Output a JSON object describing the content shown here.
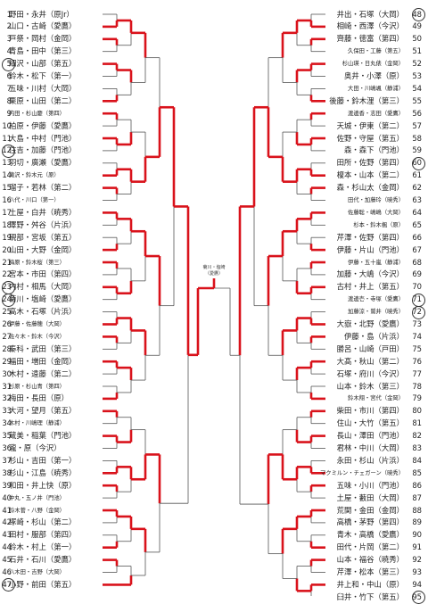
{
  "final": {
    "lines": [
      "菊川・塩崎",
      "（愛鷹）"
    ]
  },
  "left": [
    {
      "n": "1",
      "name": "野田・永井（原Jr）"
    },
    {
      "n": "2",
      "name": "山口・古崎（愛鷹）"
    },
    {
      "n": "3",
      "name": "戸祭・岡村（金岡）"
    },
    {
      "n": "4",
      "name": "青島・田中（第三）"
    },
    {
      "n": "5",
      "name": "細沢・山部（第五）"
    },
    {
      "n": "6",
      "name": "鈴木・松下（第一）"
    },
    {
      "n": "7",
      "name": "五味・川村（大岡）"
    },
    {
      "n": "8",
      "name": "栗原・山田（第二）"
    },
    {
      "n": "9",
      "name": "内田・杉山慶（第四）"
    },
    {
      "n": "10",
      "name": "柏原・伊藤（愛鷹）"
    },
    {
      "n": "11",
      "name": "大島・中村（門池）"
    },
    {
      "n": "12",
      "name": "住吉・加藤（門池）"
    },
    {
      "n": "13",
      "name": "羽切・廣瀬（愛鷹）"
    },
    {
      "n": "14",
      "name": "滝沢・鈴木元（原）"
    },
    {
      "n": "15",
      "name": "瑠子・若林（第二）"
    },
    {
      "n": "16",
      "name": "八代・川口（第一）"
    },
    {
      "n": "17",
      "name": "土屋・白井（暁秀）"
    },
    {
      "n": "18",
      "name": "澤野・舛谷（片浜）"
    },
    {
      "n": "19",
      "name": "硯部・宮坂（第五）"
    },
    {
      "n": "20",
      "name": "山田・大野（金岡）"
    },
    {
      "n": "21",
      "name": "梅原・鈴木桜（第三）"
    },
    {
      "n": "22",
      "name": "宮本・市田（第四）"
    },
    {
      "n": "23",
      "name": "内村・相馬（大岡）"
    },
    {
      "n": "24",
      "name": "菊川・塩崎（愛鷹）"
    },
    {
      "n": "25",
      "name": "高木・石塚（片浜）"
    },
    {
      "n": "26",
      "name": "伊藤・佐藤穂（大岡）"
    },
    {
      "n": "27",
      "name": "佐々木・鈴木（今沢）"
    },
    {
      "n": "28",
      "name": "秦科・武田（第三）"
    },
    {
      "n": "29",
      "name": "福田・増田（金岡）"
    },
    {
      "n": "30",
      "name": "木村・遠藤（第二）"
    },
    {
      "n": "31",
      "name": "杉原・杉山青（第四）"
    },
    {
      "n": "32",
      "name": "梅田・長田（原）"
    },
    {
      "n": "33",
      "name": "大河・望月（第五）"
    },
    {
      "n": "34",
      "name": "木村・川嶋理（静浦）"
    },
    {
      "n": "35",
      "name": "蔵美・稲葉（門池）"
    },
    {
      "n": "36",
      "name": "瀧・原（今沢）"
    },
    {
      "n": "37",
      "name": "杉山・吉田（第一）"
    },
    {
      "n": "38",
      "name": "杉山・江島（暁秀）"
    },
    {
      "n": "39",
      "name": "和田・井上快（原）"
    },
    {
      "n": "40",
      "name": "中丸・五ノ井（門池）"
    },
    {
      "n": "41",
      "name": "鈴木菅・八野（金岡）"
    },
    {
      "n": "42",
      "name": "塚崎・杉山（第二）"
    },
    {
      "n": "43",
      "name": "田村・服部（第四）"
    },
    {
      "n": "44",
      "name": "鈴木・村上（第一）"
    },
    {
      "n": "45",
      "name": "石井・石川（愛鷹）"
    },
    {
      "n": "46",
      "name": "八木田・吉野（大岡）"
    },
    {
      "n": "47",
      "name": "小野・前田（第五）"
    }
  ],
  "right": [
    {
      "n": "48",
      "name": "井出・石塚（大岡）"
    },
    {
      "n": "49",
      "name": "相崎・西澤（今沢）"
    },
    {
      "n": "50",
      "name": "齊藤・徳富（第四）"
    },
    {
      "n": "51",
      "name": "久保田・工藤（第五）"
    },
    {
      "n": "52",
      "name": "杉山瑛・日丸俵（金岡）"
    },
    {
      "n": "53",
      "name": "奥井・小澤（原）"
    },
    {
      "n": "54",
      "name": "大田・川嶋颯（静浦）"
    },
    {
      "n": "55",
      "name": "後藤・鈴木浬（第三）"
    },
    {
      "n": "56",
      "name": "渡邊香・志田（愛鷹）"
    },
    {
      "n": "57",
      "name": "天城・伊東（第二）"
    },
    {
      "n": "58",
      "name": "佐野・守屋（第五）"
    },
    {
      "n": "59",
      "name": "森・森下（門池）"
    },
    {
      "n": "60",
      "name": "田所・佐野（第四）"
    },
    {
      "n": "61",
      "name": "榎本・山本（第二）"
    },
    {
      "n": "62",
      "name": "森・杉山太（金岡）"
    },
    {
      "n": "63",
      "name": "田代・加藤玲（暁秀）"
    },
    {
      "n": "64",
      "name": "佐藤聡・嶋嶋（大岡）"
    },
    {
      "n": "65",
      "name": "杉本・鈴木楓（原）"
    },
    {
      "n": "66",
      "name": "芹澤・佐野（第四）"
    },
    {
      "n": "67",
      "name": "伊藤・片山（門池）"
    },
    {
      "n": "68",
      "name": "伊藤・五十嵐（静浦）"
    },
    {
      "n": "69",
      "name": "加藤・大嶋（今沢）"
    },
    {
      "n": "70",
      "name": "古村・井上（第五）"
    },
    {
      "n": "71",
      "name": "渡邊壱・寺塚（愛鷹）"
    },
    {
      "n": "72",
      "name": "加藤涼・鷲井（暁秀）"
    },
    {
      "n": "73",
      "name": "大嶽・北野（愛鷹）"
    },
    {
      "n": "74",
      "name": "伊藤・島（片浜）"
    },
    {
      "n": "75",
      "name": "勝呂・山崎（戸田）"
    },
    {
      "n": "76",
      "name": "大髙・秋山（第二）"
    },
    {
      "n": "77",
      "name": "石塚・府川（今沢）"
    },
    {
      "n": "78",
      "name": "山本・鈴木（第三）"
    },
    {
      "n": "79",
      "name": "鈴木翔・宮代（金岡）"
    },
    {
      "n": "80",
      "name": "柴田・市川（第四）"
    },
    {
      "n": "81",
      "name": "住山・大竹（第五）"
    },
    {
      "n": "82",
      "name": "長山・澤田（門池）"
    },
    {
      "n": "83",
      "name": "君林・中川（大岡）"
    },
    {
      "n": "84",
      "name": "永田・杉山（片浜）"
    },
    {
      "n": "85",
      "name": "マクミルン・チェガーン（暁秀）"
    },
    {
      "n": "86",
      "name": "五味・小川（門池）"
    },
    {
      "n": "87",
      "name": "土屋・藪田（大岡）"
    },
    {
      "n": "88",
      "name": "荒関・金田（金岡）"
    },
    {
      "n": "89",
      "name": "高橋・茅野（第四）"
    },
    {
      "n": "90",
      "name": "青木・高橋（愛鷹）"
    },
    {
      "n": "91",
      "name": "田代・片岡（第二）"
    },
    {
      "n": "92",
      "name": "山本・福谷（暁秀）"
    },
    {
      "n": "93",
      "name": "芹澤・松本（第三）"
    },
    {
      "n": "94",
      "name": "井上和・中山（原）"
    },
    {
      "n": "95",
      "name": "臼井・竹下（第五）"
    }
  ]
}
